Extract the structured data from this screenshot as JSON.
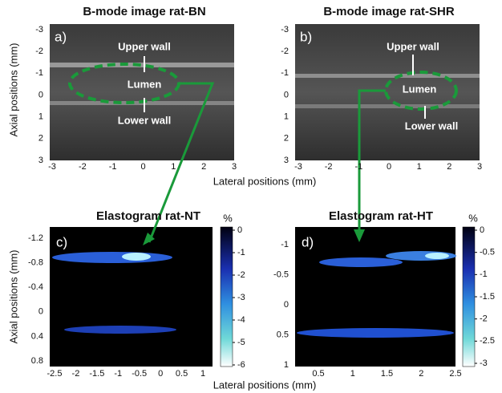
{
  "figure": {
    "x_axis_label": "Lateral positions (mm)",
    "y_axis_label": "Axial positions (mm)",
    "panels": [
      {
        "title": "B-mode image rat-BN",
        "label": "a)",
        "y_ticks": [
          -3,
          -2,
          -1,
          0,
          1,
          2,
          3
        ],
        "x_ticks": [
          -3,
          -2,
          -1,
          0,
          1,
          2,
          3
        ],
        "annotations": [
          "Upper wall",
          "Lumen",
          "Lower wall"
        ]
      },
      {
        "title": "B-mode image rat-SHR",
        "label": "b)",
        "y_ticks": [
          -3,
          -2,
          -1,
          0,
          1,
          2,
          3
        ],
        "x_ticks": [
          -3,
          -2,
          -1,
          0,
          1,
          2,
          3
        ],
        "annotations": [
          "Upper wall",
          "Lumen",
          "Lower wall"
        ]
      },
      {
        "title": "Elastogram rat-NT",
        "label": "c)",
        "y_ticks": [
          -1.2,
          -0.8,
          -0.4,
          0,
          0.4,
          0.8
        ],
        "x_ticks": [
          -2.5,
          -2,
          -1.5,
          -1,
          -0.5,
          0,
          0.5,
          1
        ],
        "colorbar": {
          "unit": "%",
          "ticks": [
            0,
            -1,
            -2,
            -3,
            -4,
            -5,
            -6
          ]
        }
      },
      {
        "title": "Elastogram rat-HT",
        "label": "d)",
        "y_ticks": [
          -1,
          -0.5,
          0,
          0.5,
          1
        ],
        "x_ticks": [
          0.5,
          1,
          1.5,
          2,
          2.5
        ],
        "colorbar": {
          "unit": "%",
          "ticks": [
            0,
            -0.5,
            -1,
            -1.5,
            -2,
            -2.5,
            -3
          ]
        }
      }
    ]
  }
}
